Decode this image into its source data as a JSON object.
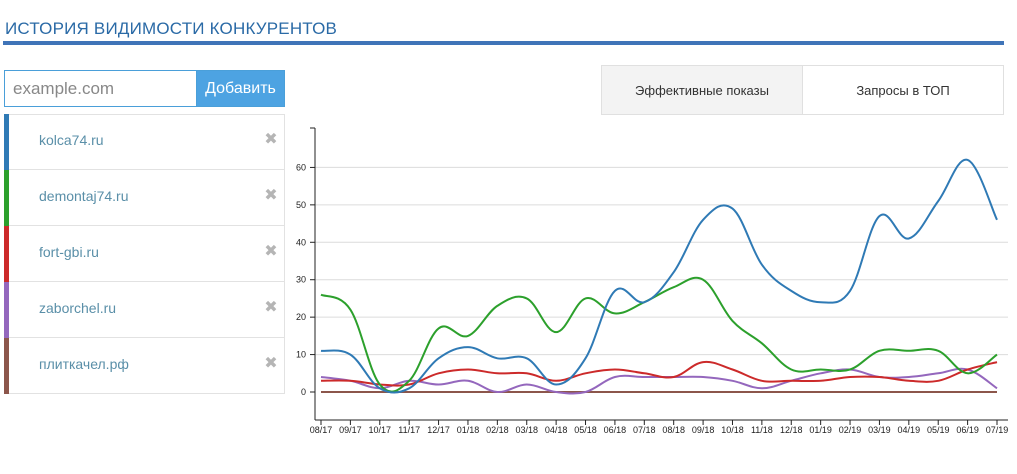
{
  "page": {
    "title": "ИСТОРИЯ ВИДИМОСТИ КОНКУРЕНТОВ"
  },
  "add_form": {
    "placeholder": "example.com",
    "button_label": "Добавить"
  },
  "competitors": [
    {
      "name": "kolca74.ru",
      "color": "#2f7ab5"
    },
    {
      "name": "demontaj74.ru",
      "color": "#2ca02c"
    },
    {
      "name": "fort-gbi.ru",
      "color": "#cc2a2a"
    },
    {
      "name": "zaborchel.ru",
      "color": "#9467bd"
    },
    {
      "name": "плиткачел.рф",
      "color": "#8c564b"
    }
  ],
  "remove_icon": "close-x-icon",
  "tabs": {
    "impressions": "Эффективные показы",
    "top_queries": "Запросы в ТОП"
  },
  "chart_data": {
    "type": "line",
    "categories": [
      "08/17",
      "09/17",
      "10/17",
      "11/17",
      "12/17",
      "01/18",
      "02/18",
      "03/18",
      "04/18",
      "05/18",
      "06/18",
      "07/18",
      "08/18",
      "09/18",
      "10/18",
      "11/18",
      "12/18",
      "01/19",
      "02/19",
      "03/19",
      "04/19",
      "05/19",
      "06/19",
      "07/19"
    ],
    "ylim": [
      0,
      70
    ],
    "yticks": [
      0,
      10,
      20,
      30,
      40,
      50,
      60
    ],
    "grid": true,
    "series": [
      {
        "name": "kolca74.ru",
        "color": "#2f7ab5",
        "values": [
          11,
          10,
          1,
          1,
          9,
          12,
          9,
          9,
          2,
          9,
          27,
          24,
          32,
          46,
          49,
          34,
          27,
          24,
          27,
          47,
          41,
          51,
          62,
          46
        ]
      },
      {
        "name": "demontaj74.ru",
        "color": "#2ca02c",
        "values": [
          26,
          22,
          2,
          3,
          17,
          15,
          23,
          25,
          16,
          25,
          21,
          24,
          28,
          30,
          19,
          13,
          6,
          6,
          6,
          11,
          11,
          11,
          5,
          10
        ]
      },
      {
        "name": "fort-gbi.ru",
        "color": "#cc2a2a",
        "values": [
          3,
          3,
          2,
          2,
          5,
          6,
          5,
          5,
          3,
          5,
          6,
          5,
          4,
          8,
          6,
          3,
          3,
          3,
          4,
          4,
          3,
          3,
          6,
          8
        ]
      },
      {
        "name": "zaborchel.ru",
        "color": "#9467bd",
        "values": [
          4,
          3,
          1,
          3,
          2,
          3,
          0,
          2,
          0,
          0,
          4,
          4,
          4,
          4,
          3,
          1,
          3,
          5,
          6,
          4,
          4,
          5,
          6,
          1
        ]
      },
      {
        "name": "плиткачел.рф",
        "color": "#8c564b",
        "values": [
          0,
          0,
          0,
          0,
          0,
          0,
          0,
          0,
          0,
          0,
          0,
          0,
          0,
          0,
          0,
          0,
          0,
          0,
          0,
          0,
          0,
          0,
          0,
          0
        ]
      }
    ]
  }
}
